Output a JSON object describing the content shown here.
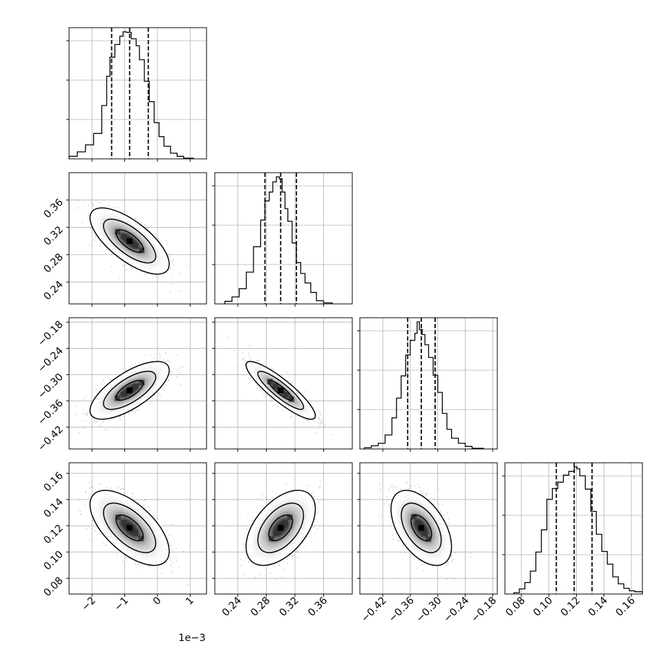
{
  "chart_data": {
    "type": "corner",
    "offset_text": "1e−3",
    "parameters": [
      {
        "range": [
          -2.7,
          1.5
        ],
        "ticks": [
          -2,
          -1,
          0,
          1
        ],
        "tick_labels": [
          "−2",
          "−1",
          "0",
          "1"
        ],
        "quantiles": [
          -1.4,
          -0.85,
          -0.28
        ],
        "hist": {
          "edges": [
            -2.7,
            -2.45,
            -2.2,
            -1.95,
            -1.7,
            -1.55,
            -1.45,
            -1.3,
            -1.15,
            -1.05,
            -0.95,
            -0.8,
            -0.65,
            -0.55,
            -0.4,
            -0.25,
            -0.1,
            0.05,
            0.2,
            0.4,
            0.6,
            0.8,
            1.1
          ],
          "counts": [
            20,
            55,
            110,
            200,
            420,
            650,
            800,
            900,
            965,
            1000,
            995,
            945,
            890,
            780,
            610,
            450,
            285,
            175,
            100,
            45,
            20,
            5
          ]
        }
      },
      {
        "range": [
          0.208,
          0.4
        ],
        "ticks": [
          0.24,
          0.28,
          0.32,
          0.36
        ],
        "tick_labels": [
          "0.24",
          "0.28",
          "0.32",
          "0.36"
        ],
        "quantiles": [
          0.278,
          0.3,
          0.322
        ],
        "hist": {
          "edges": [
            0.222,
            0.232,
            0.242,
            0.252,
            0.262,
            0.272,
            0.278,
            0.284,
            0.289,
            0.294,
            0.298,
            0.302,
            0.306,
            0.31,
            0.316,
            0.322,
            0.328,
            0.334,
            0.342,
            0.35,
            0.36,
            0.372
          ],
          "counts": [
            20,
            55,
            120,
            250,
            450,
            660,
            810,
            880,
            960,
            1000,
            985,
            880,
            750,
            650,
            480,
            325,
            240,
            165,
            90,
            25,
            8
          ]
        }
      },
      {
        "range": [
          -0.47,
          -0.17
        ],
        "ticks": [
          -0.42,
          -0.36,
          -0.3,
          -0.24,
          -0.18
        ],
        "tick_labels": [
          "−0.42",
          "−0.36",
          "−0.30",
          "−0.24",
          "−0.18"
        ],
        "quantiles": [
          -0.3656,
          -0.336,
          -0.3058
        ],
        "hist": {
          "edges": [
            -0.46,
            -0.445,
            -0.43,
            -0.415,
            -0.4,
            -0.39,
            -0.38,
            -0.37,
            -0.36,
            -0.35,
            -0.345,
            -0.34,
            -0.334,
            -0.328,
            -0.32,
            -0.31,
            -0.3,
            -0.29,
            -0.28,
            -0.27,
            -0.255,
            -0.24,
            -0.225,
            -0.2
          ],
          "counts": [
            10,
            25,
            45,
            110,
            245,
            400,
            575,
            740,
            855,
            910,
            1000,
            940,
            900,
            820,
            720,
            580,
            445,
            280,
            155,
            85,
            45,
            20,
            5
          ]
        }
      },
      {
        "range": [
          0.068,
          0.168
        ],
        "ticks": [
          0.08,
          0.1,
          0.12,
          0.14,
          0.16
        ],
        "tick_labels": [
          "0.08",
          "0.10",
          "0.12",
          "0.14",
          "0.16"
        ],
        "quantiles": [
          0.1054,
          0.1184,
          0.1314
        ],
        "hist": {
          "edges": [
            0.0745,
            0.0785,
            0.0825,
            0.0865,
            0.0905,
            0.0945,
            0.0985,
            0.1025,
            0.1065,
            0.1105,
            0.1145,
            0.1185,
            0.1205,
            0.1225,
            0.1265,
            0.1305,
            0.1345,
            0.1385,
            0.1425,
            0.1465,
            0.1505,
            0.1545,
            0.1585,
            0.1625,
            0.168
          ],
          "counts": [
            10,
            40,
            90,
            180,
            330,
            505,
            745,
            830,
            880,
            935,
            965,
            1000,
            985,
            930,
            825,
            650,
            470,
            335,
            235,
            135,
            80,
            45,
            25,
            18
          ]
        }
      }
    ],
    "pairs": [
      {
        "row": 1,
        "col": 0,
        "mean": [
          -0.85,
          0.3
        ],
        "sd": [
          0.55,
          0.022
        ],
        "rho": -0.7
      },
      {
        "row": 2,
        "col": 0,
        "mean": [
          -0.85,
          -0.336
        ],
        "sd": [
          0.55,
          0.03
        ],
        "rho": 0.7
      },
      {
        "row": 2,
        "col": 1,
        "mean": [
          0.3,
          -0.336
        ],
        "sd": [
          0.022,
          0.03
        ],
        "rho": -0.88
      },
      {
        "row": 3,
        "col": 0,
        "mean": [
          -0.85,
          0.1184
        ],
        "sd": [
          0.55,
          0.013
        ],
        "rho": -0.62
      },
      {
        "row": 3,
        "col": 1,
        "mean": [
          0.3,
          0.1184
        ],
        "sd": [
          0.022,
          0.013
        ],
        "rho": 0.5
      },
      {
        "row": 3,
        "col": 2,
        "mean": [
          -0.336,
          0.1184
        ],
        "sd": [
          0.03,
          0.013
        ],
        "rho": -0.5
      }
    ]
  }
}
